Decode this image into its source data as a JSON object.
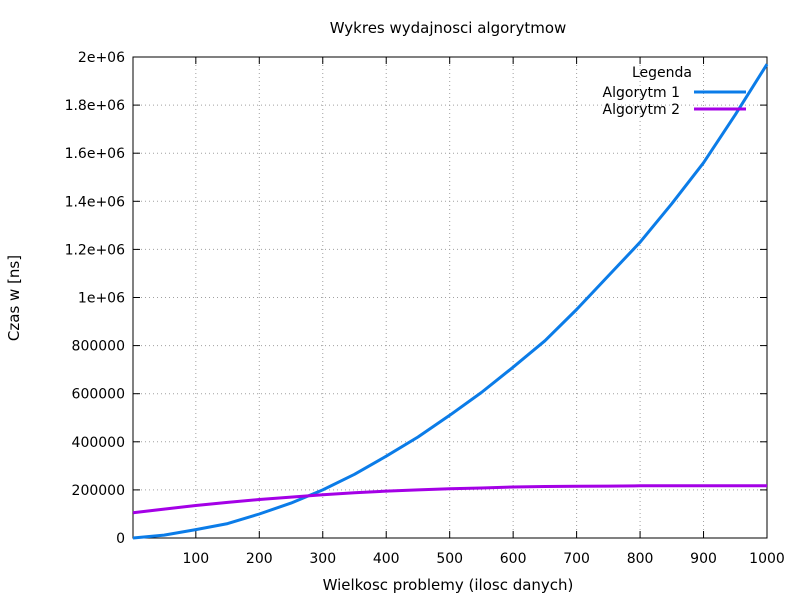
{
  "chart_data": {
    "type": "line",
    "title": "Wykres wydajnosci algorytmow",
    "xlabel": "Wielkosc problemy (ilosc danych)",
    "ylabel": "Czas w [ns]",
    "xlim": [
      1,
      1000
    ],
    "ylim": [
      0,
      2000000
    ],
    "grid": true,
    "legend_title": "Legenda",
    "legend_position": "top-right",
    "x_ticks": [
      100,
      200,
      300,
      400,
      500,
      600,
      700,
      800,
      900,
      1000
    ],
    "x_tick_labels": [
      "100",
      "200",
      "300",
      "400",
      "500",
      "600",
      "700",
      "800",
      "900",
      "1000"
    ],
    "y_ticks": [
      0,
      200000,
      400000,
      600000,
      800000,
      1000000,
      1200000,
      1400000,
      1600000,
      1800000,
      2000000
    ],
    "y_tick_labels": [
      "0",
      "200000",
      "400000",
      "600000",
      "800000",
      "1e+06",
      "1.2e+06",
      "1.4e+06",
      "1.6e+06",
      "1.8e+06",
      "2e+06"
    ],
    "x": [
      1,
      50,
      100,
      150,
      200,
      250,
      300,
      350,
      400,
      450,
      500,
      550,
      600,
      650,
      700,
      750,
      800,
      850,
      900,
      950,
      1000
    ],
    "series": [
      {
        "name": "Algorytm 1",
        "color": "#0b7ce8",
        "values": [
          0,
          12000,
          35000,
          60000,
          100000,
          145000,
          200000,
          265000,
          340000,
          420000,
          510000,
          605000,
          710000,
          820000,
          950000,
          1090000,
          1230000,
          1390000,
          1560000,
          1760000,
          1970000
        ]
      },
      {
        "name": "Algorytm 2",
        "color": "#a400e6",
        "values": [
          105000,
          120000,
          135000,
          148000,
          160000,
          170000,
          180000,
          188000,
          195000,
          200000,
          205000,
          208000,
          212000,
          214000,
          215000,
          216000,
          217000,
          217000,
          217000,
          217000,
          217000
        ]
      }
    ]
  }
}
